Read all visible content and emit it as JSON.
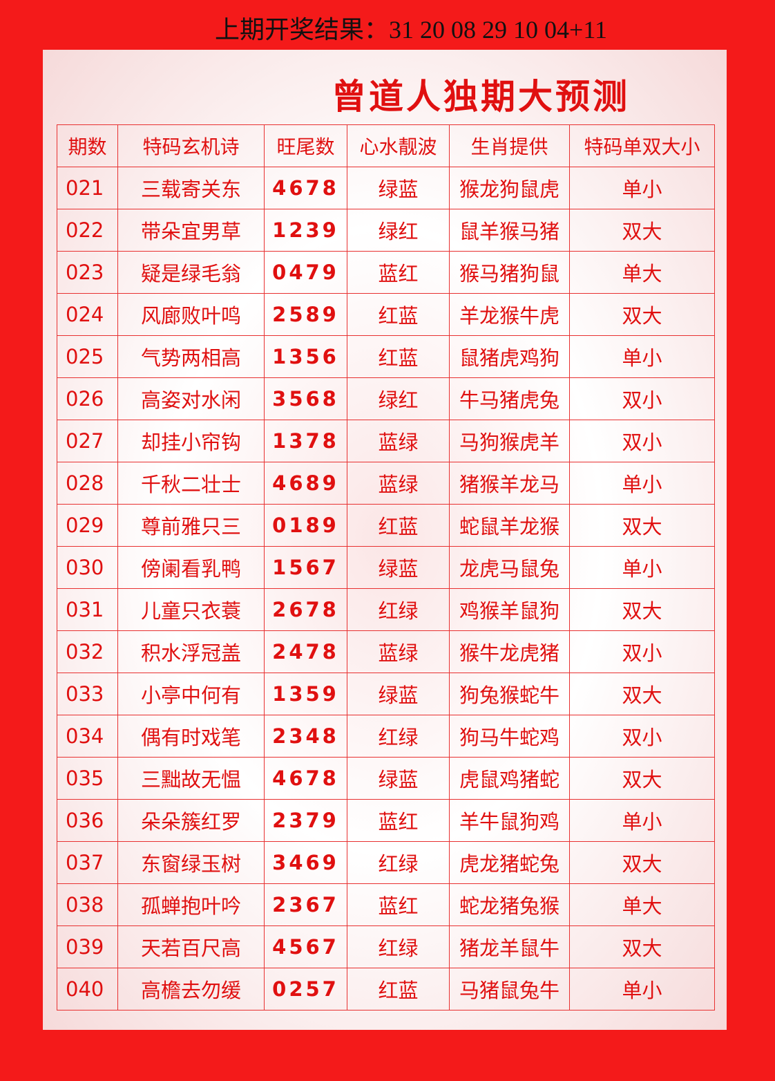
{
  "header": {
    "result_label": "上期开奖结果：31 20 08 29 10 04+11"
  },
  "title": "曾道人独期大预测",
  "table": {
    "columns": [
      "期数",
      "特码玄机诗",
      "旺尾数",
      "心水靓波",
      "生肖提供",
      "特码单双大小"
    ],
    "rows": [
      [
        "021",
        "三载寄关东",
        "4678",
        "绿蓝",
        "猴龙狗鼠虎",
        "单小"
      ],
      [
        "022",
        "带朵宜男草",
        "1239",
        "绿红",
        "鼠羊猴马猪",
        "双大"
      ],
      [
        "023",
        "疑是绿毛翁",
        "0479",
        "蓝红",
        "猴马猪狗鼠",
        "单大"
      ],
      [
        "024",
        "风廊败叶鸣",
        "2589",
        "红蓝",
        "羊龙猴牛虎",
        "双大"
      ],
      [
        "025",
        "气势两相高",
        "1356",
        "红蓝",
        "鼠猪虎鸡狗",
        "单小"
      ],
      [
        "026",
        "高姿对水闲",
        "3568",
        "绿红",
        "牛马猪虎兔",
        "双小"
      ],
      [
        "027",
        "却挂小帘钩",
        "1378",
        "蓝绿",
        "马狗猴虎羊",
        "双小"
      ],
      [
        "028",
        "千秋二壮士",
        "4689",
        "蓝绿",
        "猪猴羊龙马",
        "单小"
      ],
      [
        "029",
        "尊前雅只三",
        "0189",
        "红蓝",
        "蛇鼠羊龙猴",
        "双大"
      ],
      [
        "030",
        "傍阑看乳鸭",
        "1567",
        "绿蓝",
        "龙虎马鼠兔",
        "单小"
      ],
      [
        "031",
        "儿童只衣蓑",
        "2678",
        "红绿",
        "鸡猴羊鼠狗",
        "双大"
      ],
      [
        "032",
        "积水浮冠盖",
        "2478",
        "蓝绿",
        "猴牛龙虎猪",
        "双小"
      ],
      [
        "033",
        "小亭中何有",
        "1359",
        "绿蓝",
        "狗兔猴蛇牛",
        "双大"
      ],
      [
        "034",
        "偶有时戏笔",
        "2348",
        "红绿",
        "狗马牛蛇鸡",
        "双小"
      ],
      [
        "035",
        "三黜故无愠",
        "4678",
        "绿蓝",
        "虎鼠鸡猪蛇",
        "双大"
      ],
      [
        "036",
        "朵朵簇红罗",
        "2379",
        "蓝红",
        "羊牛鼠狗鸡",
        "单小"
      ],
      [
        "037",
        "东窗绿玉树",
        "3469",
        "红绿",
        "虎龙猪蛇兔",
        "双大"
      ],
      [
        "038",
        "孤蝉抱叶吟",
        "2367",
        "蓝红",
        "蛇龙猪兔猴",
        "单大"
      ],
      [
        "039",
        "天若百尺高",
        "4567",
        "红绿",
        "猪龙羊鼠牛",
        "双大"
      ],
      [
        "040",
        "高檐去勿缓",
        "0257",
        "红蓝",
        "马猪鼠兔牛",
        "单小"
      ]
    ]
  }
}
